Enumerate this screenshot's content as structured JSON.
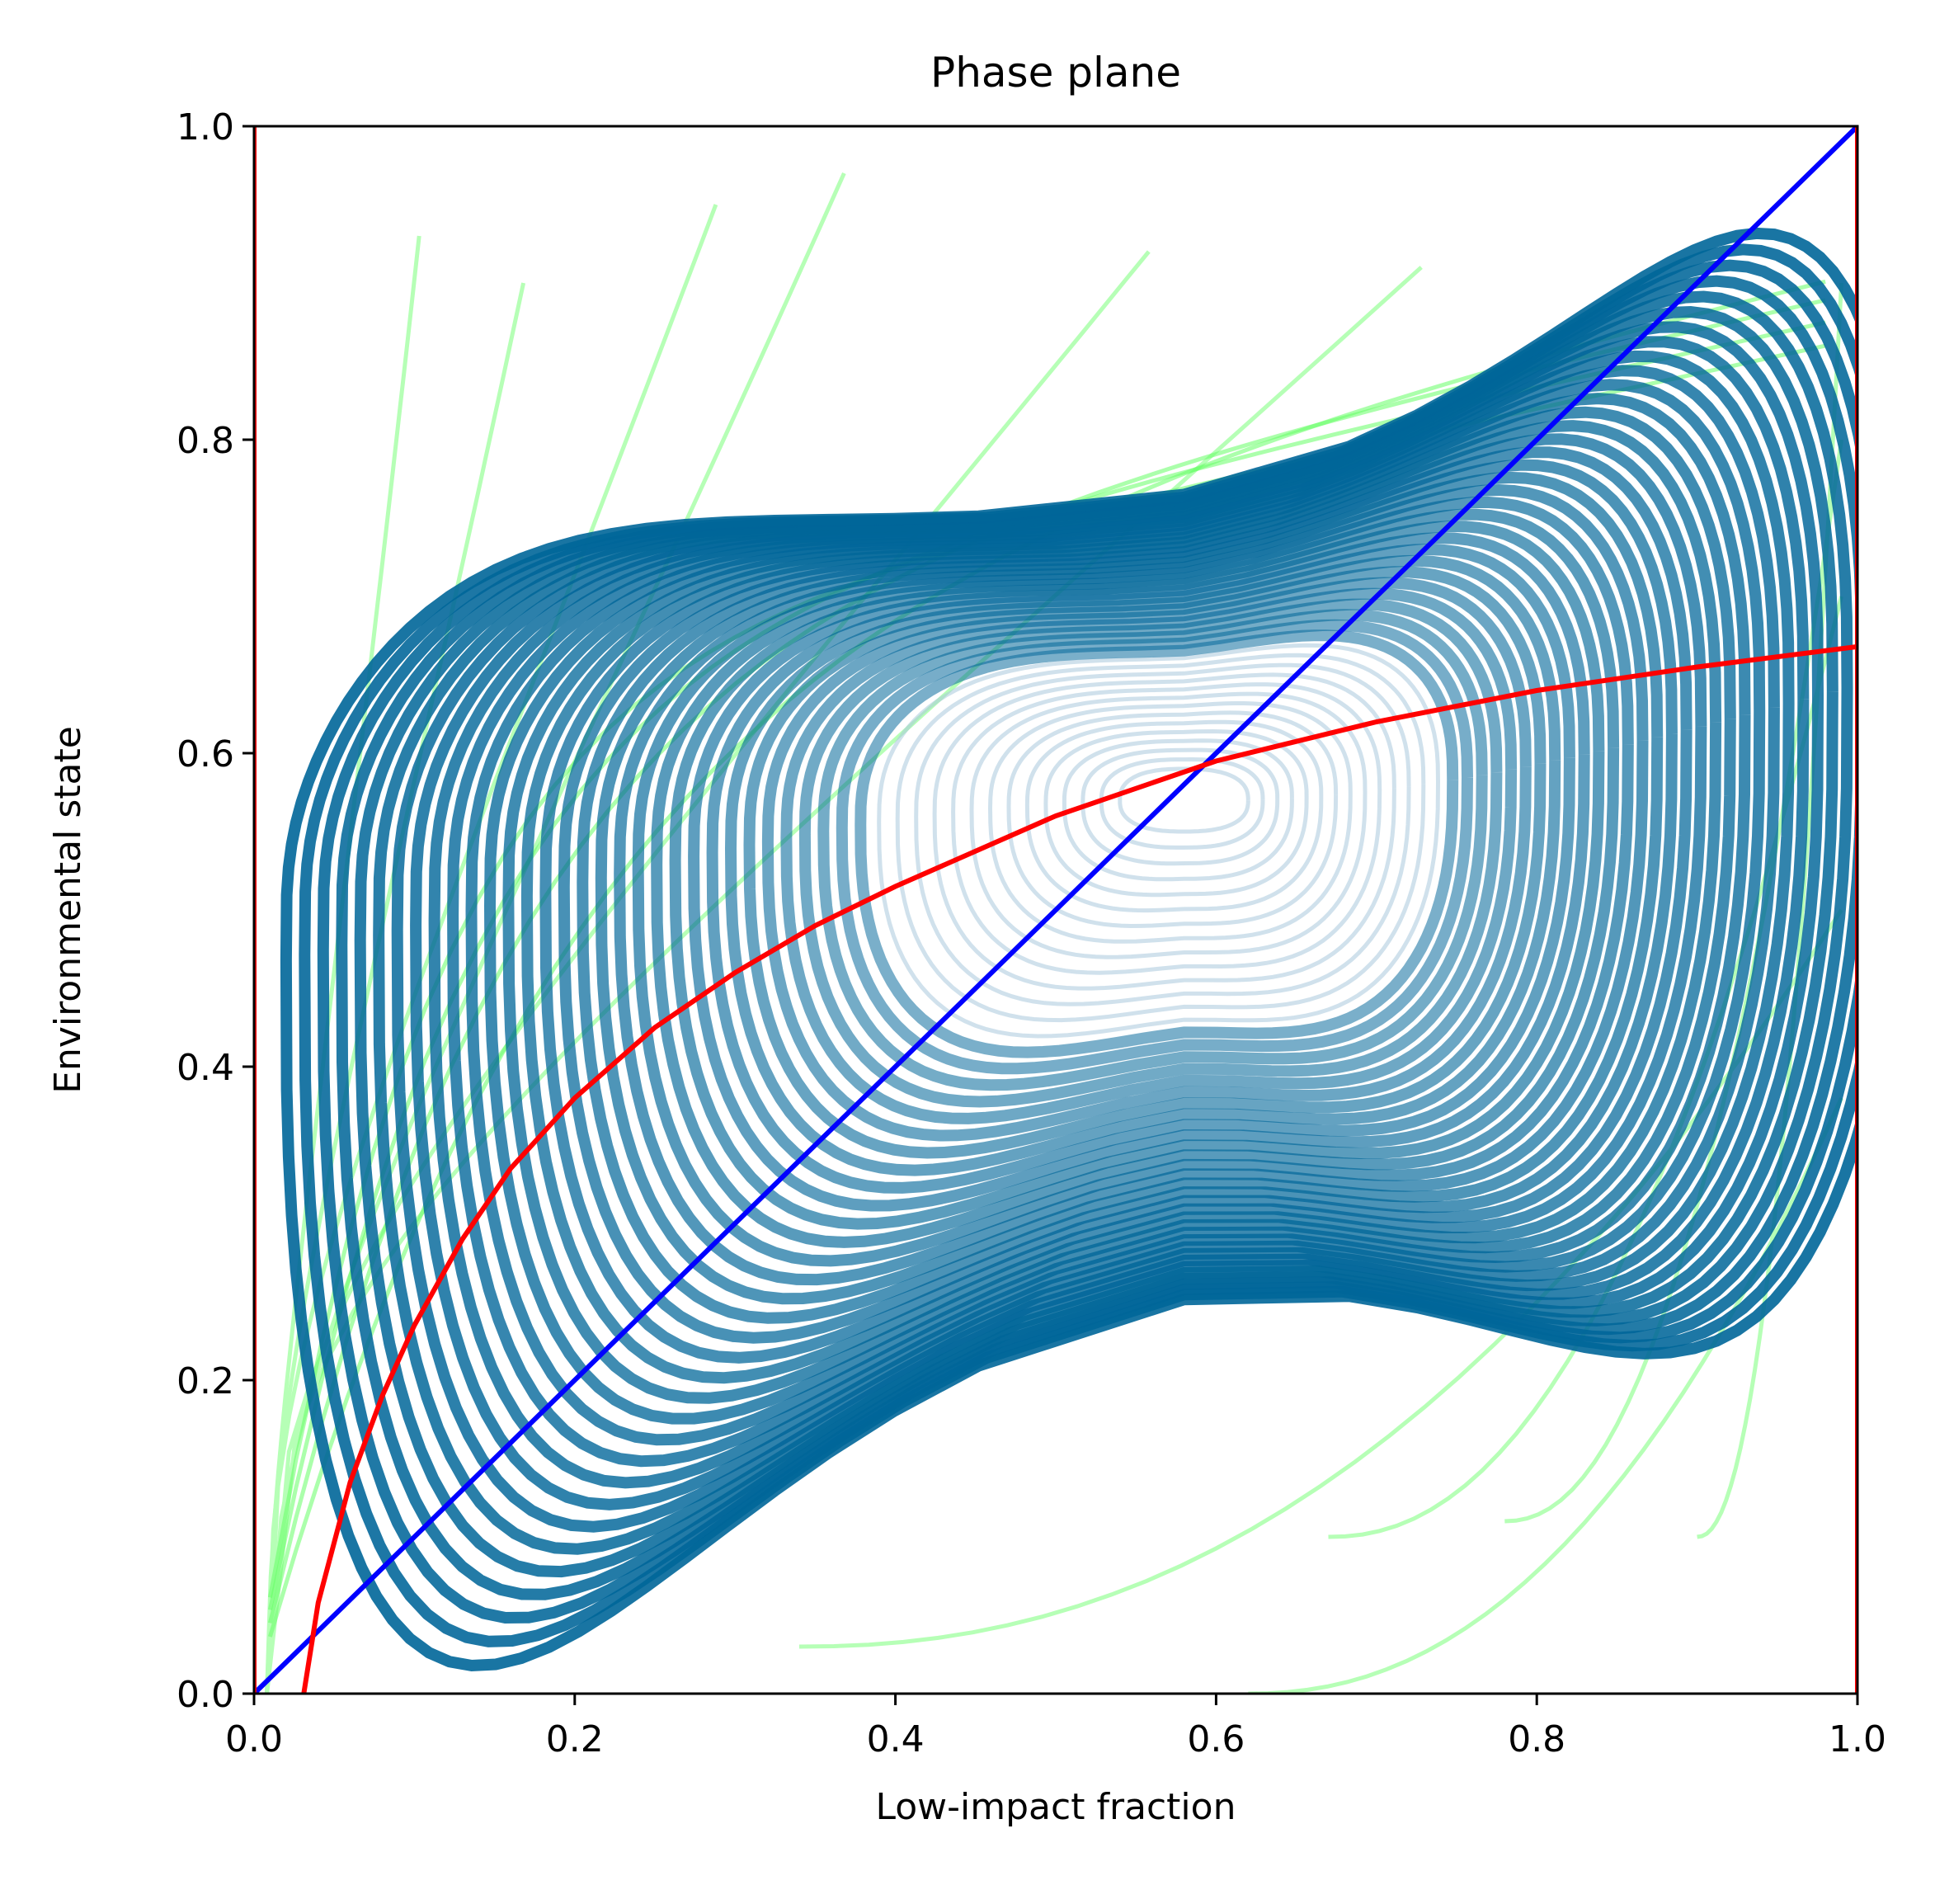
{
  "chart_data": {
    "type": "line",
    "title": "Phase plane",
    "xlabel": "Low-impact fraction",
    "ylabel": "Environmental state",
    "xlim": [
      0.0,
      1.0
    ],
    "ylim": [
      0.0,
      1.0
    ],
    "xticks": [
      "0.0",
      "0.2",
      "0.4",
      "0.6",
      "0.8",
      "1.0"
    ],
    "yticks": [
      "0.0",
      "0.2",
      "0.4",
      "0.6",
      "0.8",
      "1.0"
    ],
    "grid": false,
    "legend": "none",
    "colors": {
      "trajectory": "#006699",
      "trajectory_light": "#a9c9dc",
      "outer_trajectory": "#66ff66",
      "outer_trajectory_light": "#b6ffb6",
      "nullcline_red": "#ff0000",
      "nullcline_blue": "#0000ff"
    },
    "series": [
      {
        "color": "#0000ff",
        "x": [
          0.0,
          1.0
        ],
        "y": [
          0.0,
          1.0
        ]
      },
      {
        "color": "#ff0000",
        "x": [
          0.0,
          0.0
        ],
        "y": [
          0.0,
          1.0
        ]
      },
      {
        "color": "#ff0000",
        "x": [
          1.0,
          1.0
        ],
        "y": [
          0.0,
          1.0
        ]
      },
      {
        "color": "#ff0000",
        "x": [
          0.031,
          0.04,
          0.06,
          0.08,
          0.1,
          0.13,
          0.16,
          0.2,
          0.25,
          0.3,
          0.35,
          0.4,
          0.5,
          0.6,
          0.7,
          0.8,
          0.9,
          1.0
        ],
        "y": [
          0.0,
          0.058,
          0.135,
          0.19,
          0.235,
          0.29,
          0.335,
          0.38,
          0.425,
          0.46,
          0.49,
          0.515,
          0.56,
          0.595,
          0.62,
          0.64,
          0.655,
          0.668
        ]
      }
    ],
    "phase_portrait": {
      "equilibrium": [
        0.6,
        0.6
      ],
      "orbit_center": [
        0.58,
        0.57
      ],
      "inner_orbit_radius_x": [
        0.04,
        0.38
      ],
      "outer_envelope_x": [
        0.06,
        0.99
      ],
      "outer_envelope_y": [
        0.1,
        0.85
      ]
    }
  }
}
